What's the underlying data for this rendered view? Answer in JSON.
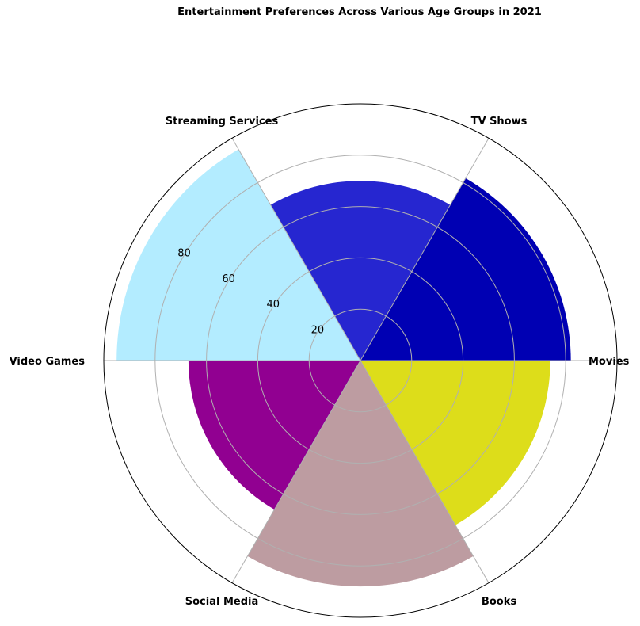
{
  "chart_data": {
    "type": "bar",
    "subtype": "polar",
    "title": "Entertainment Preferences Across Various Age Groups in 2021",
    "categories": [
      "Movies",
      "TV Shows",
      "Streaming Services",
      "Video Games",
      "Social Media",
      "Books"
    ],
    "values": [
      82,
      70,
      95,
      67,
      88,
      74
    ],
    "colors": [
      "#0000b3",
      "#2626d0",
      "#b3ecff",
      "#910091",
      "#bd9ca1",
      "#dddd1a"
    ],
    "radial_ticks": [
      20,
      40,
      60,
      80
    ],
    "rlim": [
      0,
      100
    ],
    "grid": true
  }
}
